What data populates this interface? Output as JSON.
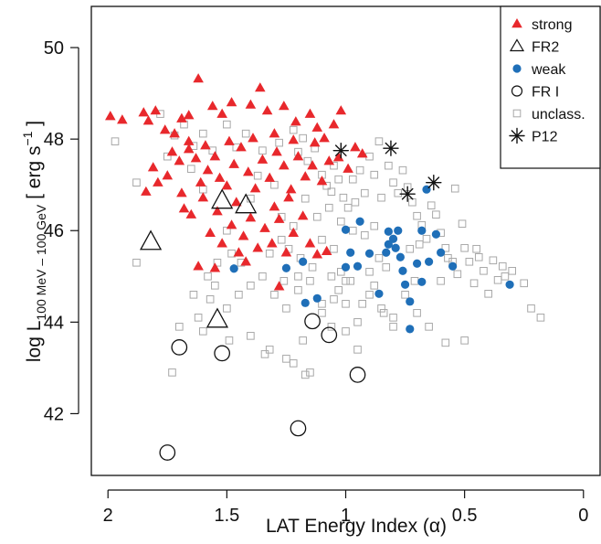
{
  "chart_data": {
    "type": "scatter",
    "title": "",
    "xlabel": "LAT Energy Index (α)",
    "ylabel": {
      "prefix": "log L",
      "subscript": "100 MeV – 100 GeV",
      "units_open": "[ erg s",
      "units_exp": "−1",
      "units_close": "]"
    },
    "x_reversed": true,
    "xlim": [
      2.07,
      -0.07
    ],
    "ylim": [
      40.65,
      50.9
    ],
    "x_ticks": [
      2,
      1.5,
      1,
      0.5,
      0
    ],
    "x_tick_labels": [
      "2",
      "1.5",
      "1",
      "0.5",
      "0"
    ],
    "y_ticks": [
      42,
      44,
      46,
      48,
      50
    ],
    "y_tick_labels": [
      "42",
      "44",
      "46",
      "48",
      "50"
    ],
    "grid": false,
    "legend_position": "top-right",
    "colors": {
      "strong": "#e8282c",
      "weak": "#1f6fb8",
      "unclassified": "#a8a8a8",
      "black": "#111111"
    },
    "series": [
      {
        "name": "strong",
        "marker": "filled-triangle",
        "color": "#e8282c",
        "points": [
          [
            1.99,
            48.5
          ],
          [
            1.94,
            48.42
          ],
          [
            1.85,
            48.58
          ],
          [
            1.83,
            48.4
          ],
          [
            1.8,
            48.62
          ],
          [
            1.76,
            48.2
          ],
          [
            1.72,
            48.12
          ],
          [
            1.69,
            48.45
          ],
          [
            1.66,
            48.52
          ],
          [
            1.62,
            49.32
          ],
          [
            1.56,
            48.72
          ],
          [
            1.52,
            48.55
          ],
          [
            1.48,
            48.8
          ],
          [
            1.4,
            48.75
          ],
          [
            1.33,
            48.62
          ],
          [
            1.26,
            48.72
          ],
          [
            1.21,
            48.38
          ],
          [
            1.15,
            48.55
          ],
          [
            1.12,
            48.25
          ],
          [
            1.05,
            48.32
          ],
          [
            1.02,
            48.62
          ],
          [
            0.99,
            47.35
          ],
          [
            0.96,
            47.82
          ],
          [
            0.93,
            47.68
          ],
          [
            1.36,
            49.12
          ],
          [
            1.81,
            47.38
          ],
          [
            1.79,
            47.05
          ],
          [
            1.84,
            46.85
          ],
          [
            1.73,
            47.72
          ],
          [
            1.7,
            47.52
          ],
          [
            1.66,
            47.78
          ],
          [
            1.63,
            47.58
          ],
          [
            1.61,
            47.05
          ],
          [
            1.58,
            47.32
          ],
          [
            1.55,
            47.62
          ],
          [
            1.53,
            47.15
          ],
          [
            1.5,
            46.98
          ],
          [
            1.47,
            47.45
          ],
          [
            1.44,
            47.82
          ],
          [
            1.41,
            47.28
          ],
          [
            1.38,
            46.92
          ],
          [
            1.35,
            47.55
          ],
          [
            1.32,
            47.15
          ],
          [
            1.29,
            47.72
          ],
          [
            1.26,
            47.42
          ],
          [
            1.23,
            46.9
          ],
          [
            1.2,
            47.62
          ],
          [
            1.17,
            47.18
          ],
          [
            1.14,
            47.42
          ],
          [
            1.1,
            47.08
          ],
          [
            1.07,
            47.52
          ],
          [
            1.03,
            47.6
          ],
          [
            1.75,
            47.2
          ],
          [
            1.69,
            46.82
          ],
          [
            1.65,
            46.35
          ],
          [
            1.6,
            46.72
          ],
          [
            1.57,
            45.95
          ],
          [
            1.54,
            46.42
          ],
          [
            1.52,
            45.72
          ],
          [
            1.48,
            46.12
          ],
          [
            1.45,
            45.52
          ],
          [
            1.43,
            45.88
          ],
          [
            1.4,
            46.28
          ],
          [
            1.37,
            45.62
          ],
          [
            1.34,
            46.05
          ],
          [
            1.31,
            45.72
          ],
          [
            1.28,
            46.25
          ],
          [
            1.25,
            45.52
          ],
          [
            1.22,
            45.95
          ],
          [
            1.18,
            46.32
          ],
          [
            1.15,
            45.72
          ],
          [
            1.12,
            45.48
          ],
          [
            1.62,
            45.22
          ],
          [
            1.55,
            45.18
          ],
          [
            1.42,
            45.32
          ],
          [
            1.28,
            44.78
          ],
          [
            1.08,
            45.55
          ],
          [
            1.66,
            47.95
          ],
          [
            1.59,
            47.86
          ],
          [
            1.49,
            47.95
          ],
          [
            1.39,
            48.02
          ],
          [
            1.3,
            48.12
          ],
          [
            1.22,
            47.98
          ],
          [
            1.13,
            47.92
          ],
          [
            1.09,
            48.02
          ],
          [
            1.68,
            46.48
          ],
          [
            1.46,
            46.62
          ],
          [
            1.3,
            46.52
          ],
          [
            1.24,
            46.72
          ]
        ]
      },
      {
        "name": "FR2",
        "marker": "open-triangle-large",
        "color": "#111111",
        "points": [
          [
            1.52,
            46.65
          ],
          [
            1.42,
            46.55
          ],
          [
            1.82,
            45.75
          ],
          [
            1.54,
            44.05
          ]
        ]
      },
      {
        "name": "weak",
        "marker": "filled-circle",
        "color": "#1f6fb8",
        "points": [
          [
            1.47,
            45.17
          ],
          [
            1.25,
            45.18
          ],
          [
            1.18,
            45.32
          ],
          [
            1.17,
            44.42
          ],
          [
            1.12,
            44.52
          ],
          [
            1.0,
            46.02
          ],
          [
            1.0,
            45.2
          ],
          [
            0.98,
            45.52
          ],
          [
            0.95,
            45.22
          ],
          [
            0.94,
            46.2
          ],
          [
            0.9,
            45.5
          ],
          [
            0.86,
            44.62
          ],
          [
            0.83,
            45.52
          ],
          [
            0.82,
            45.98
          ],
          [
            0.8,
            45.82
          ],
          [
            0.79,
            45.62
          ],
          [
            0.77,
            45.42
          ],
          [
            0.76,
            45.12
          ],
          [
            0.75,
            44.82
          ],
          [
            0.73,
            44.45
          ],
          [
            0.73,
            43.85
          ],
          [
            0.7,
            45.28
          ],
          [
            0.68,
            46.0
          ],
          [
            0.68,
            44.88
          ],
          [
            0.66,
            46.9
          ],
          [
            0.65,
            45.32
          ],
          [
            0.62,
            45.92
          ],
          [
            0.6,
            45.52
          ],
          [
            0.55,
            45.22
          ],
          [
            0.31,
            44.82
          ],
          [
            0.82,
            45.7
          ],
          [
            0.78,
            46.0
          ]
        ]
      },
      {
        "name": "FR I",
        "marker": "open-circle-large",
        "color": "#111111",
        "points": [
          [
            1.7,
            43.45
          ],
          [
            1.52,
            43.32
          ],
          [
            1.14,
            44.02
          ],
          [
            1.07,
            43.72
          ],
          [
            0.95,
            42.85
          ],
          [
            1.2,
            41.68
          ],
          [
            1.75,
            41.15
          ]
        ]
      },
      {
        "name": "unclass.",
        "marker": "open-square",
        "color": "#a8a8a8",
        "points": [
          [
            1.97,
            47.95
          ],
          [
            1.88,
            47.05
          ],
          [
            1.78,
            48.55
          ],
          [
            1.75,
            47.62
          ],
          [
            1.72,
            48.08
          ],
          [
            1.68,
            48.32
          ],
          [
            1.64,
            47.85
          ],
          [
            1.6,
            48.12
          ],
          [
            1.56,
            47.75
          ],
          [
            1.5,
            48.32
          ],
          [
            1.46,
            47.82
          ],
          [
            1.42,
            48.12
          ],
          [
            1.35,
            47.75
          ],
          [
            1.28,
            47.92
          ],
          [
            1.22,
            48.2
          ],
          [
            1.2,
            47.72
          ],
          [
            1.18,
            48.02
          ],
          [
            1.16,
            47.52
          ],
          [
            1.13,
            47.8
          ],
          [
            1.1,
            47.22
          ],
          [
            1.08,
            46.98
          ],
          [
            1.06,
            46.85
          ],
          [
            1.05,
            47.42
          ],
          [
            1.03,
            47.12
          ],
          [
            1.01,
            46.72
          ],
          [
            0.99,
            46.5
          ],
          [
            0.97,
            47.12
          ],
          [
            0.96,
            46.62
          ],
          [
            0.94,
            47.32
          ],
          [
            0.92,
            46.82
          ],
          [
            0.9,
            47.62
          ],
          [
            0.88,
            47.22
          ],
          [
            0.86,
            47.95
          ],
          [
            0.85,
            46.72
          ],
          [
            0.82,
            47.42
          ],
          [
            0.8,
            47.05
          ],
          [
            0.78,
            46.82
          ],
          [
            0.76,
            47.32
          ],
          [
            0.74,
            46.95
          ],
          [
            0.72,
            46.62
          ],
          [
            0.7,
            46.32
          ],
          [
            0.68,
            46.12
          ],
          [
            0.66,
            45.82
          ],
          [
            0.64,
            46.55
          ],
          [
            0.62,
            46.35
          ],
          [
            0.6,
            45.95
          ],
          [
            0.58,
            45.62
          ],
          [
            0.55,
            45.32
          ],
          [
            0.54,
            46.92
          ],
          [
            0.53,
            45.05
          ],
          [
            0.51,
            46.15
          ],
          [
            0.5,
            45.62
          ],
          [
            0.48,
            45.32
          ],
          [
            0.46,
            44.85
          ],
          [
            0.44,
            45.42
          ],
          [
            0.42,
            45.12
          ],
          [
            0.4,
            44.62
          ],
          [
            0.38,
            45.35
          ],
          [
            0.36,
            44.92
          ],
          [
            0.34,
            45.22
          ],
          [
            0.3,
            45.12
          ],
          [
            0.25,
            44.85
          ],
          [
            0.22,
            44.3
          ],
          [
            0.18,
            44.1
          ],
          [
            0.5,
            43.6
          ],
          [
            0.58,
            43.55
          ],
          [
            0.65,
            43.9
          ],
          [
            0.7,
            44.2
          ],
          [
            0.75,
            44.6
          ],
          [
            0.8,
            43.9
          ],
          [
            0.85,
            44.3
          ],
          [
            0.9,
            44.6
          ],
          [
            0.95,
            44.0
          ],
          [
            1.0,
            44.9
          ],
          [
            1.05,
            44.5
          ],
          [
            1.1,
            44.2
          ],
          [
            1.15,
            44.9
          ],
          [
            1.2,
            45.0
          ],
          [
            1.25,
            44.3
          ],
          [
            1.3,
            44.6
          ],
          [
            1.35,
            45.0
          ],
          [
            1.4,
            44.8
          ],
          [
            1.45,
            44.6
          ],
          [
            1.5,
            44.3
          ],
          [
            1.55,
            44.8
          ],
          [
            1.6,
            43.8
          ],
          [
            1.62,
            44.1
          ],
          [
            1.57,
            44.5
          ],
          [
            1.48,
            45.5
          ],
          [
            1.44,
            45.3
          ],
          [
            1.4,
            43.7
          ],
          [
            1.34,
            43.3
          ],
          [
            1.32,
            43.4
          ],
          [
            1.25,
            43.2
          ],
          [
            1.22,
            43.1
          ],
          [
            1.18,
            43.6
          ],
          [
            1.15,
            42.9
          ],
          [
            1.17,
            42.85
          ],
          [
            0.95,
            43.4
          ],
          [
            1.0,
            43.8
          ],
          [
            1.06,
            43.9
          ],
          [
            1.1,
            44.4
          ],
          [
            1.02,
            45.1
          ],
          [
            0.98,
            44.9
          ],
          [
            0.93,
            44.4
          ],
          [
            0.88,
            44.8
          ],
          [
            0.84,
            44.2
          ],
          [
            0.83,
            45.2
          ],
          [
            0.8,
            44.1
          ],
          [
            0.92,
            45.9
          ],
          [
            0.97,
            46.0
          ],
          [
            1.02,
            46.2
          ],
          [
            1.07,
            46.5
          ],
          [
            1.12,
            46.3
          ],
          [
            1.17,
            46.7
          ],
          [
            1.22,
            46.1
          ],
          [
            1.27,
            45.8
          ],
          [
            1.32,
            45.5
          ],
          [
            1.1,
            45.8
          ],
          [
            1.05,
            45.6
          ],
          [
            1.14,
            45.2
          ],
          [
            1.2,
            44.7
          ],
          [
            1.26,
            44.9
          ],
          [
            1.5,
            46.0
          ],
          [
            1.54,
            45.3
          ],
          [
            1.58,
            45.0
          ],
          [
            1.64,
            44.6
          ],
          [
            1.7,
            43.9
          ],
          [
            1.73,
            42.9
          ],
          [
            1.49,
            43.6
          ],
          [
            1.88,
            45.3
          ],
          [
            1.6,
            46.9
          ],
          [
            1.65,
            47.35
          ],
          [
            1.3,
            47.0
          ],
          [
            1.37,
            47.2
          ],
          [
            1.4,
            46.7
          ],
          [
            1.27,
            46.3
          ],
          [
            1.24,
            45.6
          ],
          [
            1.19,
            45.4
          ],
          [
            1.06,
            45.0
          ],
          [
            1.03,
            44.7
          ],
          [
            1.0,
            44.4
          ],
          [
            0.9,
            45.1
          ],
          [
            0.86,
            45.4
          ],
          [
            0.88,
            46.1
          ],
          [
            0.73,
            45.6
          ],
          [
            0.71,
            44.9
          ],
          [
            0.69,
            45.7
          ],
          [
            0.6,
            44.9
          ],
          [
            0.57,
            45.4
          ],
          [
            0.45,
            45.6
          ],
          [
            0.33,
            45.0
          ]
        ]
      },
      {
        "name": "P12",
        "marker": "asterisk",
        "color": "#111111",
        "points": [
          [
            1.02,
            47.75
          ],
          [
            0.81,
            47.8
          ],
          [
            0.74,
            46.8
          ],
          [
            0.63,
            47.05
          ]
        ]
      }
    ]
  }
}
